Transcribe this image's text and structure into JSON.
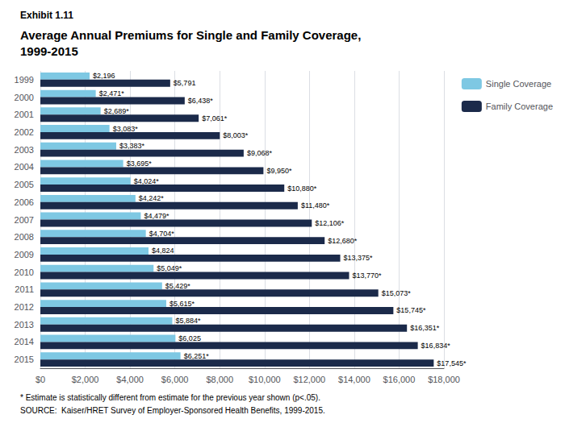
{
  "chart_data": {
    "type": "bar",
    "orientation": "horizontal",
    "title": "Exhibit 1.11",
    "subtitle": [
      "Average Annual Premiums for Single and Family Coverage,",
      "1999-2015"
    ],
    "categories": [
      "1999",
      "2000",
      "2001",
      "2002",
      "2003",
      "2004",
      "2005",
      "2006",
      "2007",
      "2008",
      "2009",
      "2010",
      "2011",
      "2012",
      "2013",
      "2014",
      "2015"
    ],
    "series": [
      {
        "name": "Single Coverage",
        "color": "#7EC8E3",
        "values": [
          2196,
          2471,
          2689,
          3083,
          3383,
          3695,
          4024,
          4242,
          4479,
          4704,
          4824,
          5049,
          5429,
          5615,
          5884,
          6025,
          6251
        ],
        "value_labels": [
          "$2,196",
          "$2,471*",
          "$2,689*",
          "$3,083*",
          "$3,383*",
          "$3,695*",
          "$4,024*",
          "$4,242*",
          "$4,479*",
          "$4,704*",
          "$4,824",
          "$5,049*",
          "$5,429*",
          "$5,615*",
          "$5,884*",
          "$6,025",
          "$6,251*"
        ]
      },
      {
        "name": "Family Coverage",
        "color": "#1B2A4A",
        "values": [
          5791,
          6438,
          7061,
          8003,
          9068,
          9950,
          10880,
          11480,
          12106,
          12680,
          13375,
          13770,
          15073,
          15745,
          16351,
          16834,
          17545
        ],
        "value_labels": [
          "$5,791",
          "$6,438*",
          "$7,061*",
          "$8,003*",
          "$9,068*",
          "$9,950*",
          "$10,880*",
          "$11,480*",
          "$12,106*",
          "$12,680*",
          "$13,375*",
          "$13,770*",
          "$15,073*",
          "$15,745*",
          "$16,351*",
          "$16,834*",
          "$17,545*"
        ]
      }
    ],
    "xlim": [
      0,
      18000
    ],
    "xticks": [
      {
        "value": 0,
        "label": "$0"
      },
      {
        "value": 2000,
        "label": "$2,000"
      },
      {
        "value": 4000,
        "label": "$4,000"
      },
      {
        "value": 6000,
        "label": "$6,000"
      },
      {
        "value": 8000,
        "label": "$8,000"
      },
      {
        "value": 10000,
        "label": "$10,000"
      },
      {
        "value": 12000,
        "label": "$12,000"
      },
      {
        "value": 14000,
        "label": "$14,000"
      },
      {
        "value": 16000,
        "label": "$16,000"
      },
      {
        "value": 18000,
        "label": "$18,000"
      }
    ],
    "grid": true,
    "legend": "right",
    "data_labels": true,
    "annotations": [
      "* Estimate is statistically different from estimate for the previous year shown (p<.05).",
      "SOURCE:  Kaiser/HRET Survey of Employer-Sponsored Health Benefits, 1999-2015."
    ]
  }
}
